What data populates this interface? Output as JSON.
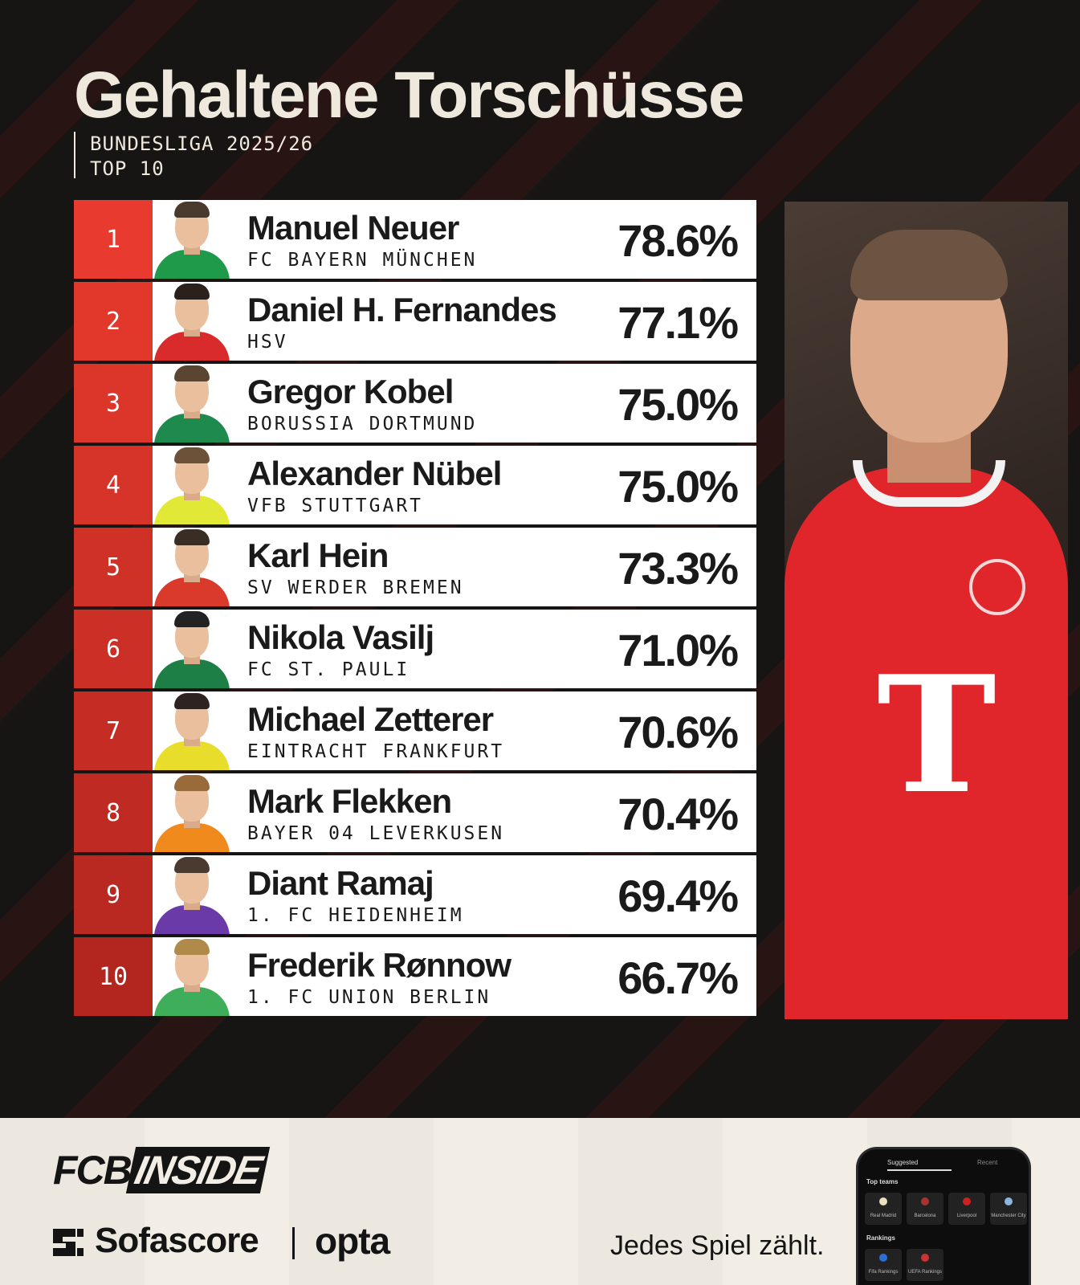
{
  "header": {
    "title": "Gehaltene Torschüsse",
    "league": "BUNDESLIGA 2025/26",
    "subset": "TOP 10"
  },
  "colors": {
    "rank_red_top": "#e83a2e",
    "rank_red_bottom": "#b3261f",
    "background": "#171414",
    "title_cream": "#efe8dc"
  },
  "players": [
    {
      "rank": "1",
      "name": "Manuel Neuer",
      "club": "FC BAYERN MÜNCHEN",
      "pct": "78.6%",
      "shirt": "#1f9a4a",
      "hair": "#4a3a2d"
    },
    {
      "rank": "2",
      "name": "Daniel H. Fernandes",
      "club": "HSV",
      "pct": "77.1%",
      "shirt": "#d92b2b",
      "hair": "#2a211c"
    },
    {
      "rank": "3",
      "name": "Gregor Kobel",
      "club": "BORUSSIA DORTMUND",
      "pct": "75.0%",
      "shirt": "#1e8a4d",
      "hair": "#5a4432"
    },
    {
      "rank": "4",
      "name": "Alexander Nübel",
      "club": "VFB STUTTGART",
      "pct": "75.0%",
      "shirt": "#e1e835",
      "hair": "#6b5239"
    },
    {
      "rank": "5",
      "name": "Karl Hein",
      "club": "SV WERDER BREMEN",
      "pct": "73.3%",
      "shirt": "#d93a2b",
      "hair": "#3a2d24"
    },
    {
      "rank": "6",
      "name": "Nikola Vasilj",
      "club": "FC ST. PAULI",
      "pct": "71.0%",
      "shirt": "#1d7f45",
      "hair": "#222"
    },
    {
      "rank": "7",
      "name": "Michael Zetterer",
      "club": "EINTRACHT FRANKFURT",
      "pct": "70.6%",
      "shirt": "#e7dd2a",
      "hair": "#2d2420"
    },
    {
      "rank": "8",
      "name": "Mark Flekken",
      "club": "BAYER 04 LEVERKUSEN",
      "pct": "70.4%",
      "shirt": "#f08a1c",
      "hair": "#9a6b3a"
    },
    {
      "rank": "9",
      "name": "Diant Ramaj",
      "club": "1. FC HEIDENHEIM",
      "pct": "69.4%",
      "shirt": "#6a3aa8",
      "hair": "#4a3a30"
    },
    {
      "rank": "10",
      "name": "Frederik Rønnow",
      "club": "1. FC UNION BERLIN",
      "pct": "66.7%",
      "shirt": "#3fae5a",
      "hair": "#b08a4a"
    }
  ],
  "footer": {
    "fcb_logo_a": "FCB",
    "fcb_logo_b": "INSIDE",
    "sofascore": "Sofascore",
    "opta": "opta",
    "tagline": "Jedes Spiel zählt.",
    "phone": {
      "tab_active": "Suggested",
      "tab_inactive": "Recent",
      "section1": "Top teams",
      "teams": [
        "Real Madrid",
        "Barcelona",
        "Liverpool",
        "Manchester City"
      ],
      "section2": "Rankings",
      "rankings": [
        "Fifa Rankings",
        "UEFA Rankings"
      ]
    }
  }
}
